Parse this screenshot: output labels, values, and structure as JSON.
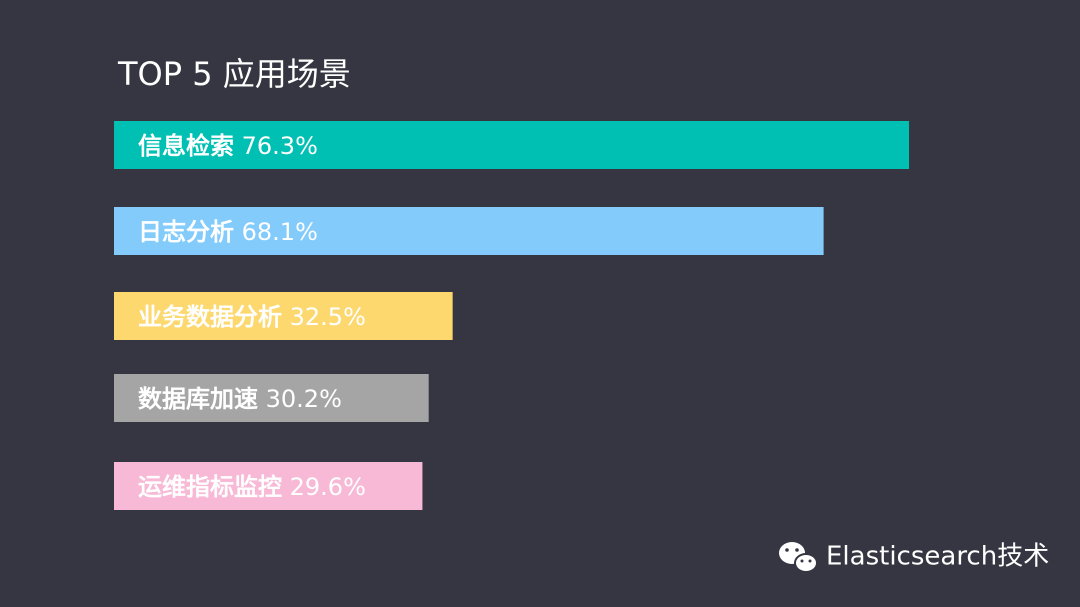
{
  "chart_data": {
    "type": "bar",
    "orientation": "horizontal",
    "title": "TOP 5 应用场景",
    "categories": [
      "信息检索",
      "日志分析",
      "业务数据分析",
      "数据库加速",
      "运维指标监控"
    ],
    "values": [
      76.3,
      68.1,
      32.5,
      30.2,
      29.6
    ],
    "value_labels": [
      "76.3%",
      "68.1%",
      "32.5%",
      "30.2%",
      "29.6%"
    ],
    "colors": [
      "#00bfb3",
      "#82cbfb",
      "#fcd86f",
      "#a5a5a5",
      "#f7b9d5"
    ],
    "watermark": "Elasticsearch技术"
  }
}
